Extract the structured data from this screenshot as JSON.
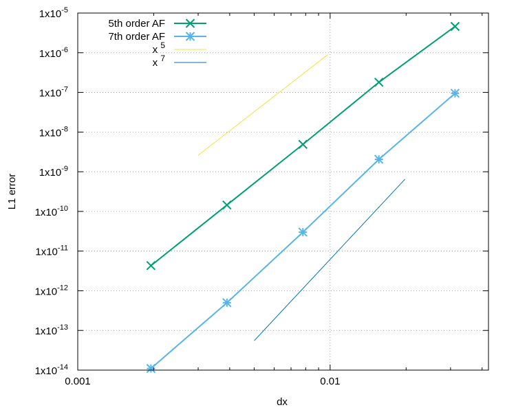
{
  "chart_data": {
    "type": "line",
    "xlabel": "dx",
    "ylabel": "L1 error",
    "x_scale": "log",
    "y_scale": "log",
    "xlim": [
      0.001,
      0.0424
    ],
    "ylim": [
      1e-14,
      1e-05
    ],
    "grid": "major (dotted, gray)",
    "legend_position": "top-left",
    "x_ticks": [
      {
        "value": 0.001,
        "label": "0.001"
      },
      {
        "value": 0.01,
        "label": "0.01"
      }
    ],
    "y_ticks": [
      {
        "exp": -14,
        "base": "1x10",
        "sup": "-14"
      },
      {
        "exp": -13,
        "base": "1x10",
        "sup": "-13"
      },
      {
        "exp": -12,
        "base": "1x10",
        "sup": "-12"
      },
      {
        "exp": -11,
        "base": "1x10",
        "sup": "-11"
      },
      {
        "exp": -10,
        "base": "1x10",
        "sup": "-10"
      },
      {
        "exp": -9,
        "base": "1x10",
        "sup": "-9"
      },
      {
        "exp": -8,
        "base": "1x10",
        "sup": "-8"
      },
      {
        "exp": -7,
        "base": "1x10",
        "sup": "-7"
      },
      {
        "exp": -6,
        "base": "1x10",
        "sup": "-6"
      },
      {
        "exp": -5,
        "base": "1x10",
        "sup": "-5"
      }
    ],
    "series": [
      {
        "name": "5th order AF",
        "color": "#009e73",
        "marker": "x",
        "x": [
          0.00195,
          0.0039,
          0.0078,
          0.0156,
          0.03125
        ],
        "y": [
          4.3e-12,
          1.45e-10,
          4.9e-09,
          1.8e-07,
          4.6e-06
        ]
      },
      {
        "name": "7th order AF",
        "color": "#56b4e9",
        "marker": "asterisk",
        "x": [
          0.00195,
          0.0039,
          0.0078,
          0.0156,
          0.03125
        ],
        "y": [
          1.1e-14,
          5e-13,
          3e-11,
          2.05e-09,
          9.5e-08
        ]
      },
      {
        "name": "x 5",
        "name_base": "x",
        "name_sup": "5",
        "color": "#f0e442",
        "marker": "none",
        "x": [
          0.003,
          0.0098
        ],
        "y": [
          2.6e-09,
          9e-07
        ]
      },
      {
        "name": "x 7",
        "name_base": "x",
        "name_sup": "7",
        "color": "#0072b2",
        "marker": "none",
        "x": [
          0.005,
          0.0198
        ],
        "y": [
          5.5e-14,
          6.5e-10
        ]
      }
    ]
  }
}
